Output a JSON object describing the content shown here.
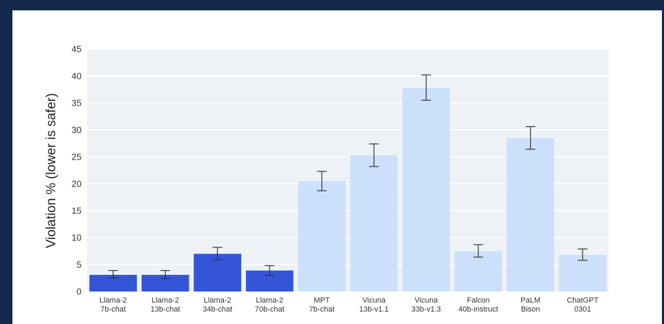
{
  "chart_data": {
    "type": "bar",
    "title": "",
    "xlabel": "",
    "ylabel": "Violation % (lower is safer)",
    "ylim": [
      0,
      45
    ],
    "yticks": [
      0,
      5,
      10,
      15,
      20,
      25,
      30,
      35,
      40,
      45
    ],
    "grid": true,
    "categories": [
      [
        "Llama-2",
        "7b-chat"
      ],
      [
        "Llama-2",
        "13b-chat"
      ],
      [
        "Llama-2",
        "34b-chat"
      ],
      [
        "Llama-2",
        "70b-chat"
      ],
      [
        "MPT",
        "7b-chat"
      ],
      [
        "Vicuna",
        "13b-v1.1"
      ],
      [
        "Vicuna",
        "33b-v1.3"
      ],
      [
        "Falcon",
        "40b-instruct"
      ],
      [
        "PaLM",
        "Bison"
      ],
      [
        "ChatGPT",
        "0301"
      ]
    ],
    "values": [
      3.1,
      3.1,
      7.0,
      3.9,
      20.5,
      25.3,
      37.8,
      7.5,
      28.5,
      6.8
    ],
    "error_low": [
      2.5,
      2.4,
      5.9,
      3.0,
      18.7,
      23.2,
      35.5,
      6.4,
      26.4,
      5.8
    ],
    "error_high": [
      3.9,
      3.9,
      8.2,
      4.8,
      22.3,
      27.4,
      40.2,
      8.7,
      30.6,
      7.9
    ],
    "colors": [
      "#3456d6",
      "#3456d6",
      "#3456d6",
      "#3456d6",
      "#cde0fb",
      "#cde0fb",
      "#cde0fb",
      "#cde0fb",
      "#cde0fb",
      "#cde0fb"
    ],
    "plot_background": "#eef2f6",
    "gridline_color": "#ffffff"
  }
}
